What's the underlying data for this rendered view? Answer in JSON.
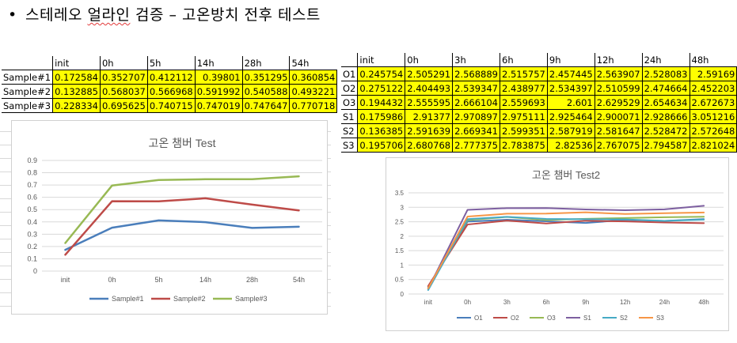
{
  "heading": {
    "bullet": "•",
    "prefix": "스테레오 ",
    "wavy_word": "얼라인",
    "suffix": " 검증 – 고온방치 전후 테스트"
  },
  "table1": {
    "columns": [
      "",
      "init",
      "0h",
      "5h",
      "14h",
      "28h",
      "54h"
    ],
    "rows": [
      {
        "label": "Sample#1",
        "values": [
          "0.172584",
          "0.352707",
          "0.412112",
          "0.39801",
          "0.351295",
          "0.360854"
        ]
      },
      {
        "label": "Sample#2",
        "values": [
          "0.132885",
          "0.568037",
          "0.566968",
          "0.591992",
          "0.540588",
          "0.493221"
        ]
      },
      {
        "label": "Sample#3",
        "values": [
          "0.228334",
          "0.695625",
          "0.740715",
          "0.747019",
          "0.747647",
          "0.770718"
        ]
      }
    ]
  },
  "table2": {
    "columns": [
      "",
      "init",
      "0h",
      "3h",
      "6h",
      "9h",
      "12h",
      "24h",
      "48h"
    ],
    "rows": [
      {
        "label": "O1",
        "values": [
          "0.245754",
          "2.505291",
          "2.568889",
          "2.515757",
          "2.457445",
          "2.563907",
          "2.528083",
          "2.59169"
        ]
      },
      {
        "label": "O2",
        "values": [
          "0.275122",
          "2.404493",
          "2.539347",
          "2.438977",
          "2.534397",
          "2.510599",
          "2.474664",
          "2.452203"
        ]
      },
      {
        "label": "O3",
        "values": [
          "0.194432",
          "2.555595",
          "2.666104",
          "2.559693",
          "2.601",
          "2.629529",
          "2.654634",
          "2.672673"
        ]
      },
      {
        "label": "S1",
        "values": [
          "0.175986",
          "2.91377",
          "2.970897",
          "2.975111",
          "2.925464",
          "2.900071",
          "2.928666",
          "3.051216"
        ]
      },
      {
        "label": "S2",
        "values": [
          "0.136385",
          "2.591639",
          "2.669341",
          "2.599351",
          "2.587919",
          "2.581647",
          "2.528472",
          "2.572648"
        ]
      },
      {
        "label": "S3",
        "values": [
          "0.195706",
          "2.680768",
          "2.777375",
          "2.783875",
          "2.82536",
          "2.767075",
          "2.794587",
          "2.821024"
        ]
      }
    ]
  },
  "chart_data": [
    {
      "type": "line",
      "title": "고온 챔버 Test",
      "categories": [
        "init",
        "0h",
        "5h",
        "14h",
        "28h",
        "54h"
      ],
      "ylim": [
        0,
        0.9
      ],
      "ytick_step": 0.1,
      "yticks": [
        "0",
        "0.1",
        "0.2",
        "0.3",
        "0.4",
        "0.5",
        "0.6",
        "0.7",
        "0.8",
        "0.9"
      ],
      "grid": true,
      "legend": "bottom",
      "series": [
        {
          "name": "Sample#1",
          "color": "#4a7ebb",
          "values": [
            0.172584,
            0.352707,
            0.412112,
            0.39801,
            0.351295,
            0.360854
          ]
        },
        {
          "name": "Sample#2",
          "color": "#be4b48",
          "values": [
            0.132885,
            0.568037,
            0.566968,
            0.591992,
            0.540588,
            0.493221
          ]
        },
        {
          "name": "Sample#3",
          "color": "#98b954",
          "values": [
            0.228334,
            0.695625,
            0.740715,
            0.747019,
            0.747647,
            0.770718
          ]
        }
      ]
    },
    {
      "type": "line",
      "title": "고온 챔버 Test2",
      "categories": [
        "init",
        "0h",
        "3h",
        "6h",
        "9h",
        "12h",
        "24h",
        "48h"
      ],
      "ylim": [
        0,
        3.5
      ],
      "ytick_step": 0.5,
      "yticks": [
        "0",
        "0.5",
        "1",
        "1.5",
        "2",
        "2.5",
        "3",
        "3.5"
      ],
      "grid": true,
      "legend": "bottom",
      "series": [
        {
          "name": "O1",
          "color": "#4a7ebb",
          "values": [
            0.245754,
            2.505291,
            2.568889,
            2.515757,
            2.457445,
            2.563907,
            2.528083,
            2.59169
          ]
        },
        {
          "name": "O2",
          "color": "#be4b48",
          "values": [
            0.275122,
            2.404493,
            2.539347,
            2.438977,
            2.534397,
            2.510599,
            2.474664,
            2.452203
          ]
        },
        {
          "name": "O3",
          "color": "#98b954",
          "values": [
            0.194432,
            2.555595,
            2.666104,
            2.559693,
            2.601,
            2.629529,
            2.654634,
            2.672673
          ]
        },
        {
          "name": "S1",
          "color": "#7d5fa0",
          "values": [
            0.175986,
            2.91377,
            2.970897,
            2.975111,
            2.925464,
            2.900071,
            2.928666,
            3.051216
          ]
        },
        {
          "name": "S2",
          "color": "#46aac5",
          "values": [
            0.136385,
            2.591639,
            2.669341,
            2.599351,
            2.587919,
            2.581647,
            2.528472,
            2.572648
          ]
        },
        {
          "name": "S3",
          "color": "#f79646",
          "values": [
            0.195706,
            2.680768,
            2.777375,
            2.783875,
            2.82536,
            2.767075,
            2.794587,
            2.821024
          ]
        }
      ]
    }
  ]
}
